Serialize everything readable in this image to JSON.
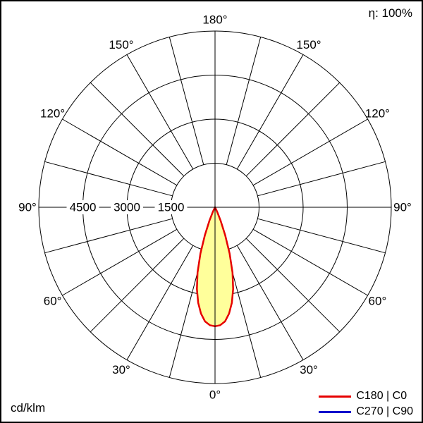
{
  "header": {
    "efficiency_label": "η: 100%"
  },
  "footer": {
    "unit_label": "cd/klm"
  },
  "legend": {
    "items": [
      {
        "label": "C180 | C0",
        "color": "#e60000"
      },
      {
        "label": "C270 | C90",
        "color": "#0000cc"
      }
    ]
  },
  "chart_data": {
    "type": "line",
    "subtype": "polar-intensity-distribution",
    "units": "cd/klm",
    "grid": true,
    "legend_position": "bottom-right",
    "ring_values": [
      1500,
      3000,
      4500,
      6000
    ],
    "ring_axis_labels": [
      "4500",
      "3000",
      "1500"
    ],
    "spoke_step_deg": 15,
    "angle_label_step_deg": 30,
    "angle_labels": [
      "0°",
      "30°",
      "60°",
      "90°",
      "120°",
      "150°",
      "180°"
    ],
    "series": [
      {
        "name": "C180 | C0",
        "color": "#e60000",
        "fill": "#ffff9b",
        "symmetric": true,
        "angles_deg": [
          0,
          2.5,
          5,
          7.5,
          10,
          12.5,
          15,
          17.5,
          20,
          22.5,
          25,
          27.5,
          30
        ],
        "values": [
          4050,
          4020,
          3900,
          3650,
          3300,
          2850,
          2300,
          1650,
          1000,
          500,
          180,
          40,
          0
        ]
      },
      {
        "name": "C270 | C90",
        "color": "#0000cc",
        "note": "curve not separately visible; coincides with C180 | C0 lobe"
      }
    ]
  }
}
